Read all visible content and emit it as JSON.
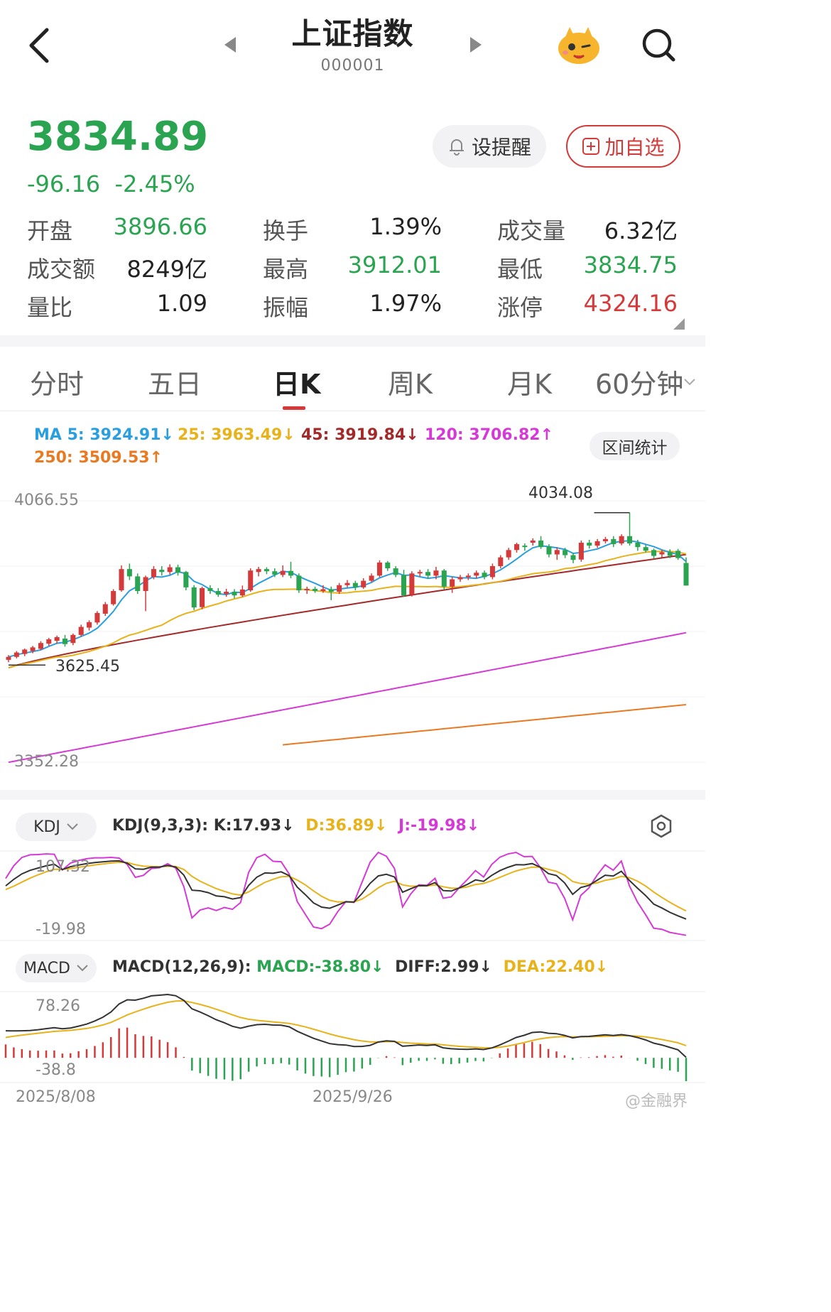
{
  "header": {
    "title": "上证指数",
    "code": "000001"
  },
  "quote": {
    "price": "3834.89",
    "change": "-96.16",
    "change_pct": "-2.45%",
    "up_color": "#d43a3a",
    "down_color": "#2aa451"
  },
  "actions": {
    "remind_label": "设提醒",
    "add_label": "加自选"
  },
  "stats": [
    {
      "label": "开盘",
      "value": "3896.66",
      "color": "#2aa451"
    },
    {
      "label": "换手",
      "value": "1.39%",
      "color": "#222222"
    },
    {
      "label": "成交量",
      "value": "6.32亿",
      "color": "#222222"
    },
    {
      "label": "成交额",
      "value": "8249亿",
      "color": "#222222"
    },
    {
      "label": "最高",
      "value": "3912.01",
      "color": "#2aa451"
    },
    {
      "label": "最低",
      "value": "3834.75",
      "color": "#2aa451"
    },
    {
      "label": "量比",
      "value": "1.09",
      "color": "#222222"
    },
    {
      "label": "振幅",
      "value": "1.97%",
      "color": "#222222"
    },
    {
      "label": "涨停",
      "value": "4324.16",
      "color": "#d43a3a"
    }
  ],
  "tabs": [
    "分时",
    "五日",
    "日K",
    "周K",
    "月K",
    "60分钟"
  ],
  "active_tab": "日K",
  "ma_legend": [
    {
      "text": "MA 5: 3924.91↓",
      "color": "#2a9fe0"
    },
    {
      "text": "25: 3963.49↓",
      "color": "#e8b21a"
    },
    {
      "text": "45: 3919.84↓",
      "color": "#a32a2a"
    },
    {
      "text": "120: 3706.82↑",
      "color": "#d63ad6"
    },
    {
      "text": "250: 3509.53↑",
      "color": "#e87a22"
    }
  ],
  "range_stats_label": "区间统计",
  "kline": {
    "y_top_label": "4066.55",
    "y_bottom_label": "3352.28",
    "high_marker": "4034.08",
    "low_marker": "3625.45"
  },
  "kdj": {
    "selector": "KDJ",
    "params": "KDJ(9,3,3):",
    "k": "K:17.93↓",
    "d": "D:36.89↓",
    "j": "J:-19.98↓",
    "y_top": "107.32",
    "y_bottom": "-19.98"
  },
  "macd": {
    "selector": "MACD",
    "params": "MACD(12,26,9):",
    "macd": "MACD:-38.80↓",
    "diff": "DIFF:2.99↓",
    "dea": "DEA:22.40↓",
    "y_top": "78.26",
    "y_bottom": "-38.8"
  },
  "dates": [
    "2025/8/08",
    "2025/9/26"
  ],
  "watermark": "@金融界",
  "chart_data": {
    "type": "candlestick",
    "y_range": [
      3352.28,
      4066.55
    ],
    "candles": [
      [
        3632,
        3640,
        3625.45,
        3645
      ],
      [
        3640,
        3652,
        3636,
        3656
      ],
      [
        3648,
        3660,
        3642,
        3663
      ],
      [
        3656,
        3666,
        3650,
        3670
      ],
      [
        3662,
        3678,
        3658,
        3683
      ],
      [
        3676,
        3688,
        3670,
        3692
      ],
      [
        3684,
        3694,
        3676,
        3698
      ],
      [
        3690,
        3675,
        3668,
        3700
      ],
      [
        3678,
        3700,
        3672,
        3704
      ],
      [
        3700,
        3722,
        3695,
        3728
      ],
      [
        3720,
        3735,
        3712,
        3740
      ],
      [
        3734,
        3760,
        3728,
        3765
      ],
      [
        3758,
        3784,
        3752,
        3790
      ],
      [
        3784,
        3820,
        3780,
        3825
      ],
      [
        3822,
        3880,
        3818,
        3890
      ],
      [
        3880,
        3860,
        3850,
        3895
      ],
      [
        3860,
        3820,
        3812,
        3868
      ],
      [
        3820,
        3858,
        3765,
        3862
      ],
      [
        3858,
        3880,
        3852,
        3888
      ],
      [
        3878,
        3872,
        3862,
        3888
      ],
      [
        3872,
        3885,
        3865,
        3893
      ],
      [
        3885,
        3870,
        3862,
        3892
      ],
      [
        3872,
        3830,
        3822,
        3875
      ],
      [
        3830,
        3775,
        3768,
        3836
      ],
      [
        3776,
        3828,
        3770,
        3832
      ],
      [
        3828,
        3820,
        3812,
        3836
      ],
      [
        3820,
        3810,
        3804,
        3828
      ],
      [
        3812,
        3818,
        3804,
        3826
      ],
      [
        3818,
        3808,
        3800,
        3825
      ],
      [
        3808,
        3824,
        3804,
        3835
      ],
      [
        3822,
        3876,
        3818,
        3882
      ],
      [
        3872,
        3880,
        3860,
        3886
      ],
      [
        3880,
        3874,
        3866,
        3885
      ],
      [
        3874,
        3865,
        3858,
        3882
      ],
      [
        3864,
        3875,
        3858,
        3890
      ],
      [
        3875,
        3862,
        3855,
        3900
      ],
      [
        3862,
        3822,
        3815,
        3868
      ],
      [
        3822,
        3826,
        3812,
        3832
      ],
      [
        3826,
        3820,
        3815,
        3832
      ],
      [
        3820,
        3825,
        3815,
        3836
      ],
      [
        3825,
        3818,
        3795,
        3832
      ],
      [
        3818,
        3836,
        3812,
        3842
      ],
      [
        3836,
        3842,
        3830,
        3850
      ],
      [
        3842,
        3830,
        3822,
        3848
      ],
      [
        3830,
        3848,
        3826,
        3855
      ],
      [
        3848,
        3862,
        3844,
        3868
      ],
      [
        3862,
        3898,
        3858,
        3904
      ],
      [
        3898,
        3882,
        3875,
        3902
      ],
      [
        3882,
        3864,
        3858,
        3888
      ],
      [
        3864,
        3808,
        3804,
        3878
      ],
      [
        3810,
        3868,
        3805,
        3874
      ],
      [
        3868,
        3872,
        3860,
        3878
      ],
      [
        3872,
        3862,
        3855,
        3880
      ],
      [
        3862,
        3876,
        3852,
        3886
      ],
      [
        3876,
        3832,
        3825,
        3880
      ],
      [
        3832,
        3852,
        3815,
        3858
      ],
      [
        3852,
        3858,
        3845,
        3864
      ],
      [
        3858,
        3862,
        3850,
        3868
      ],
      [
        3862,
        3870,
        3855,
        3876
      ],
      [
        3870,
        3858,
        3852,
        3876
      ],
      [
        3858,
        3888,
        3852,
        3895
      ],
      [
        3888,
        3912,
        3882,
        3918
      ],
      [
        3912,
        3932,
        3905,
        3938
      ],
      [
        3932,
        3948,
        3925,
        3952
      ],
      [
        3944,
        3940,
        3930,
        3950
      ],
      [
        3952,
        3958,
        3944,
        3964
      ],
      [
        3958,
        3940,
        3935,
        3970
      ],
      [
        3942,
        3920,
        3912,
        3948
      ],
      [
        3920,
        3932,
        3905,
        3940
      ],
      [
        3932,
        3918,
        3910,
        3938
      ],
      [
        3918,
        3905,
        3896,
        3924
      ],
      [
        3906,
        3952,
        3900,
        3958
      ],
      [
        3952,
        3944,
        3936,
        3960
      ],
      [
        3944,
        3956,
        3938,
        3962
      ],
      [
        3956,
        3962,
        3950,
        3968
      ],
      [
        3962,
        3948,
        3940,
        3970
      ],
      [
        3950,
        3970,
        3945,
        3975
      ],
      [
        3970,
        3950,
        3944,
        4034.08
      ],
      [
        3952,
        3940,
        3930,
        3960
      ],
      [
        3940,
        3930,
        3925,
        3946
      ],
      [
        3932,
        3916,
        3908,
        3936
      ],
      [
        3920,
        3926,
        3912,
        3932
      ],
      [
        3926,
        3916,
        3910,
        3934
      ],
      [
        3930,
        3910,
        3905,
        3935
      ],
      [
        3896.66,
        3834.89,
        3834.75,
        3912.01
      ]
    ]
  }
}
